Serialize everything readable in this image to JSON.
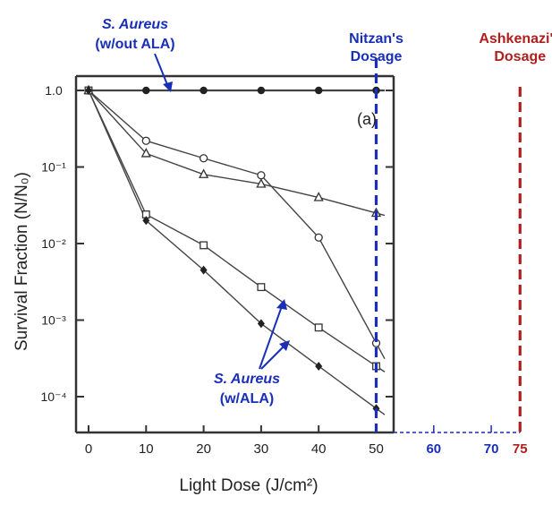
{
  "chart_data": {
    "type": "scatter",
    "title": "",
    "panel_label": "(a)",
    "xlabel": "Light Dose (J/cm²)",
    "ylabel": "Survival Fraction (N/N₀)",
    "y_scale": "log",
    "xlim": [
      0,
      53
    ],
    "ylim": [
      3e-05,
      1.8
    ],
    "x_ticks": [
      "0",
      "10",
      "20",
      "30",
      "40",
      "50"
    ],
    "x_ticks_extended": [
      "60",
      "70",
      "75"
    ],
    "y_ticks": [
      {
        "value": 1,
        "label": "1.0"
      },
      {
        "value": 0.1,
        "label": "10⁻¹"
      },
      {
        "value": 0.01,
        "label": "10⁻²"
      },
      {
        "value": 0.001,
        "label": "10⁻³"
      },
      {
        "value": 0.0001,
        "label": "10⁻⁴"
      }
    ],
    "grid": false,
    "series": [
      {
        "marker": "filled-circle",
        "x": [
          0,
          10,
          20,
          30,
          40,
          50
        ],
        "y": [
          1.0,
          1.0,
          1.0,
          1.0,
          1.0,
          1.0
        ]
      },
      {
        "marker": "open-circle",
        "x": [
          0,
          10,
          20,
          30,
          40,
          50
        ],
        "y": [
          1.0,
          0.22,
          0.13,
          0.078,
          0.012,
          0.0005
        ]
      },
      {
        "marker": "open-triangle",
        "x": [
          0,
          10,
          20,
          30,
          40,
          50
        ],
        "y": [
          1.0,
          0.15,
          0.08,
          0.06,
          0.04,
          0.025
        ]
      },
      {
        "marker": "open-square",
        "x": [
          0,
          10,
          20,
          30,
          40,
          50
        ],
        "y": [
          1.0,
          0.024,
          0.0095,
          0.0027,
          0.0008,
          0.00025
        ]
      },
      {
        "marker": "filled-diamond",
        "x": [
          0,
          10,
          20,
          30,
          40,
          50
        ],
        "y": [
          1.0,
          0.02,
          0.0045,
          0.0009,
          0.00025,
          7e-05
        ]
      }
    ],
    "vertical_markers": [
      {
        "label": "Nitzan's\nDosage",
        "x": 50,
        "color": "#1a2fb8"
      },
      {
        "label": "Ashkenazi's\nDosage",
        "x": 75,
        "color": "#b01e1e"
      }
    ],
    "annotations": [
      {
        "title": "S. Aureus",
        "subtitle": "(w/out ALA)",
        "color": "#1a2fb8"
      },
      {
        "title": "S. Aureus",
        "subtitle": "(w/ALA)",
        "color": "#1a2fb8"
      }
    ]
  }
}
